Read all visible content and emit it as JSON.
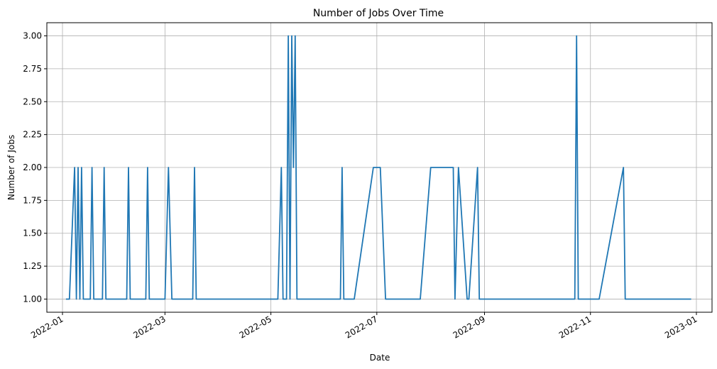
{
  "chart_data": {
    "type": "line",
    "title": "Number of Jobs Over Time",
    "xlabel": "Date",
    "ylabel": "Number of Jobs",
    "grid": true,
    "line_color": "#1f77b4",
    "xlim": [
      "2021-12-23",
      "2023-01-10"
    ],
    "ylim": [
      0.9,
      3.1
    ],
    "x_ticks": [
      "2022-01-01",
      "2022-03-01",
      "2022-05-01",
      "2022-07-01",
      "2022-09-01",
      "2022-11-01",
      "2023-01-01"
    ],
    "x_tick_labels": [
      "2022-01",
      "2022-03",
      "2022-05",
      "2022-07",
      "2022-09",
      "2022-11",
      "2023-01"
    ],
    "y_ticks": [
      1.0,
      1.25,
      1.5,
      1.75,
      2.0,
      2.25,
      2.5,
      2.75,
      3.0
    ],
    "y_tick_labels": [
      "1.00",
      "1.25",
      "1.50",
      "1.75",
      "2.00",
      "2.25",
      "2.50",
      "2.75",
      "3.00"
    ],
    "series": [
      {
        "x": [
          "2022-01-03",
          "2022-01-05",
          "2022-01-08",
          "2022-01-09",
          "2022-01-10",
          "2022-01-11",
          "2022-01-12",
          "2022-01-13",
          "2022-01-17",
          "2022-01-18",
          "2022-01-19",
          "2022-01-24",
          "2022-01-25",
          "2022-01-26",
          "2022-02-07",
          "2022-02-08",
          "2022-02-09",
          "2022-02-18",
          "2022-02-19",
          "2022-02-20",
          "2022-03-01",
          "2022-03-03",
          "2022-03-05",
          "2022-03-17",
          "2022-03-18",
          "2022-03-19",
          "2022-05-05",
          "2022-05-07",
          "2022-05-08",
          "2022-05-10",
          "2022-05-11",
          "2022-05-12",
          "2022-05-13",
          "2022-05-14",
          "2022-05-15",
          "2022-05-16",
          "2022-05-17",
          "2022-06-10",
          "2022-06-11",
          "2022-06-12",
          "2022-06-18",
          "2022-06-29",
          "2022-07-03",
          "2022-07-06",
          "2022-07-26",
          "2022-08-01",
          "2022-08-11",
          "2022-08-14",
          "2022-08-15",
          "2022-08-17",
          "2022-08-22",
          "2022-08-23",
          "2022-08-28",
          "2022-08-29",
          "2022-10-23",
          "2022-10-24",
          "2022-10-25",
          "2022-11-06",
          "2022-11-20",
          "2022-11-21",
          "2022-12-29"
        ],
        "y": [
          1,
          1,
          2,
          1,
          2,
          1,
          2,
          1,
          1,
          2,
          1,
          1,
          2,
          1,
          1,
          2,
          1,
          1,
          2,
          1,
          1,
          2,
          1,
          1,
          2,
          1,
          1,
          2,
          1,
          1,
          3,
          1,
          3,
          2,
          3,
          1,
          1,
          1,
          2,
          1,
          1,
          2,
          2,
          1,
          1,
          2,
          2,
          2,
          1,
          2,
          1,
          1,
          2,
          1,
          1,
          3,
          1,
          1,
          2,
          1,
          1
        ]
      }
    ]
  }
}
